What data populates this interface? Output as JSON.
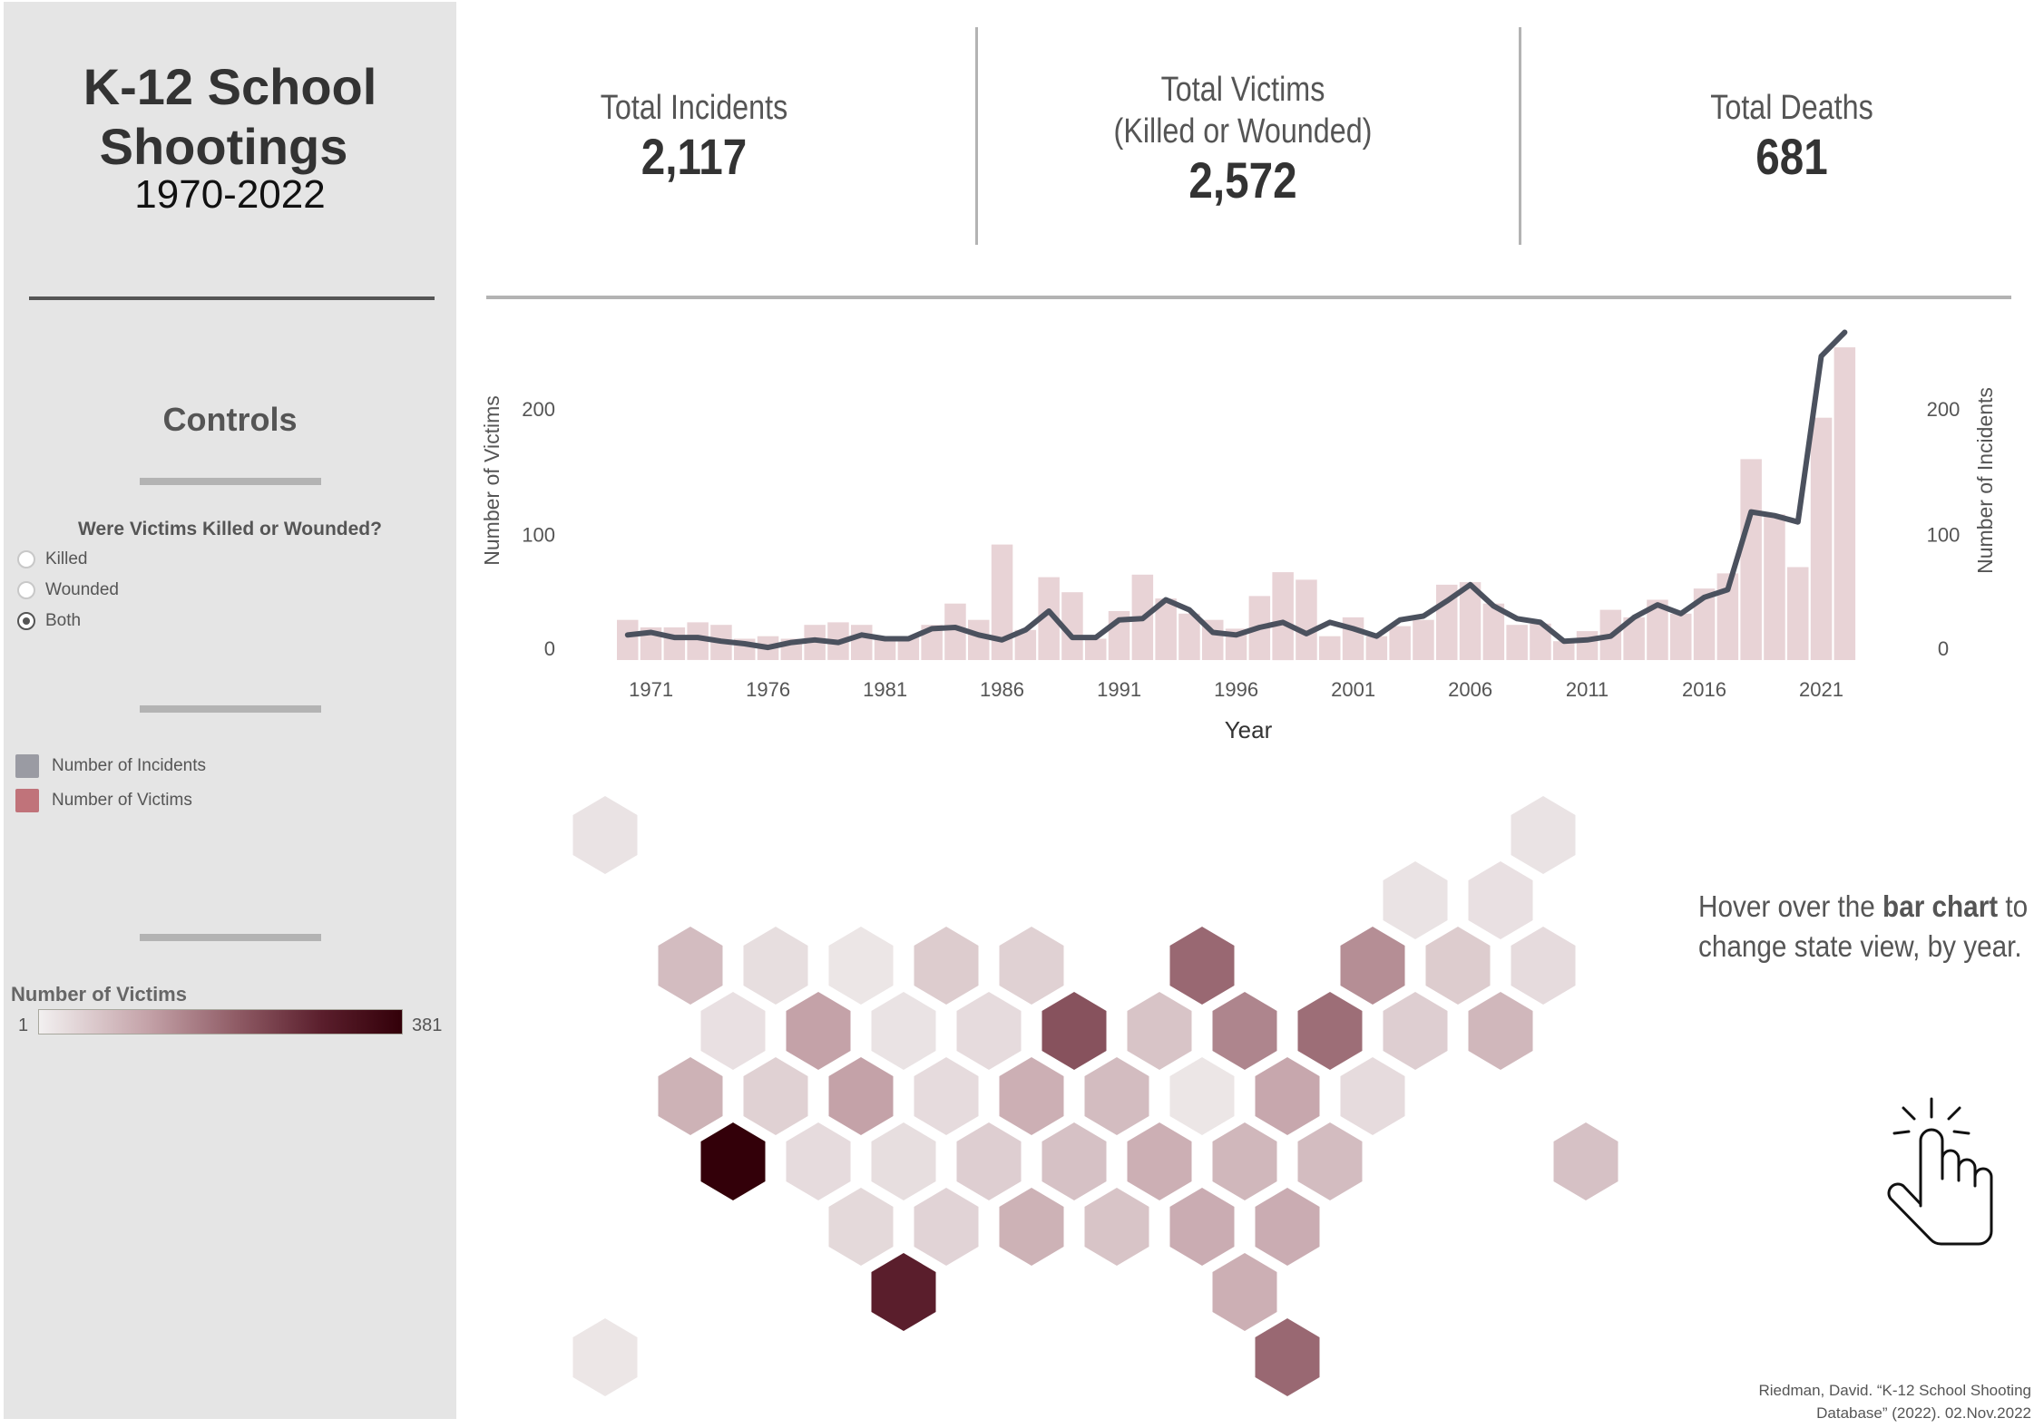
{
  "sidebar": {
    "title_line1": "K-12 School",
    "title_line2": "Shootings",
    "years": "1970-2022",
    "controls_title": "Controls",
    "filter": {
      "title": "Were Victims Killed or Wounded?",
      "options": [
        {
          "label": "Killed",
          "selected": false
        },
        {
          "label": "Wounded",
          "selected": false
        },
        {
          "label": "Both",
          "selected": true
        }
      ]
    },
    "legend": [
      {
        "label": "Number of Incidents",
        "color": "#9a9ba3"
      },
      {
        "label": "Number of Victims",
        "color": "#c0737a"
      }
    ],
    "color_legend": {
      "title": "Number of Victims",
      "min": "1",
      "max": "381",
      "color_low": "#f2f0f0",
      "color_high": "#330009"
    }
  },
  "kpis": [
    {
      "label_line1": "Total Incidents",
      "label_line2": "",
      "value": "2,117"
    },
    {
      "label_line1": "Total Victims",
      "label_line2": "(Killed or Wounded)",
      "value": "2,572"
    },
    {
      "label_line1": "Total Deaths",
      "label_line2": "",
      "value": "681"
    }
  ],
  "chart_data": {
    "type": "bar",
    "title": "",
    "xlabel": "Year",
    "ylabel": "Number of Victims",
    "ylabel_right": "Number of Incidents",
    "ylim": [
      0,
      250
    ],
    "y_ticks": [
      "0",
      "100",
      "200"
    ],
    "y_tick_values": [
      0,
      100,
      200
    ],
    "x_tick_labels": [
      "1971",
      "1976",
      "1981",
      "1986",
      "1991",
      "1996",
      "2001",
      "2006",
      "2011",
      "2016",
      "2021"
    ],
    "grid": false,
    "bar_color": "#e8d3d6",
    "line_color": "#4b515e",
    "x": [
      1970,
      1971,
      1972,
      1973,
      1974,
      1975,
      1976,
      1977,
      1978,
      1979,
      1980,
      1981,
      1982,
      1983,
      1984,
      1985,
      1986,
      1987,
      1988,
      1989,
      1990,
      1991,
      1992,
      1993,
      1994,
      1995,
      1996,
      1997,
      1998,
      1999,
      2000,
      2001,
      2002,
      2003,
      2004,
      2005,
      2006,
      2007,
      2008,
      2009,
      2010,
      2011,
      2012,
      2013,
      2014,
      2015,
      2016,
      2017,
      2018,
      2019,
      2020,
      2021,
      2022
    ],
    "series": [
      {
        "name": "Number of Victims",
        "type": "bar",
        "axis": "left",
        "values": [
          32,
          26,
          26,
          30,
          28,
          17,
          19,
          17,
          28,
          30,
          28,
          17,
          18,
          28,
          45,
          32,
          92,
          24,
          66,
          54,
          17,
          39,
          68,
          49,
          37,
          32,
          25,
          51,
          70,
          64,
          19,
          34,
          19,
          27,
          32,
          60,
          62,
          45,
          28,
          29,
          15,
          23,
          40,
          34,
          48,
          37,
          57,
          69,
          160,
          116,
          74,
          193,
          249
        ]
      },
      {
        "name": "Number of Incidents",
        "type": "line",
        "axis": "right",
        "values": [
          20,
          22,
          18,
          18,
          15,
          13,
          10,
          14,
          16,
          14,
          20,
          17,
          17,
          25,
          26,
          20,
          16,
          24,
          39,
          18,
          18,
          32,
          33,
          48,
          40,
          22,
          20,
          26,
          30,
          21,
          30,
          25,
          19,
          32,
          35,
          47,
          60,
          43,
          33,
          30,
          15,
          16,
          19,
          34,
          44,
          37,
          50,
          56,
          118,
          115,
          110,
          242,
          261
        ]
      }
    ]
  },
  "map": {
    "type": "hex-tile-map",
    "encoding": "Number of Victims",
    "tiles": [
      {
        "row": 0,
        "col": 0,
        "shade": 0.05
      },
      {
        "row": 0,
        "col": 11,
        "shade": 0.05
      },
      {
        "row": 1,
        "col": 9.5,
        "shade": 0.05
      },
      {
        "row": 1,
        "col": 10.5,
        "shade": 0.06
      },
      {
        "row": 2,
        "col": 1,
        "shade": 0.2
      },
      {
        "row": 2,
        "col": 2,
        "shade": 0.07
      },
      {
        "row": 2,
        "col": 3,
        "shade": 0.04
      },
      {
        "row": 2,
        "col": 4,
        "shade": 0.14
      },
      {
        "row": 2,
        "col": 5,
        "shade": 0.12
      },
      {
        "row": 2,
        "col": 7,
        "shade": 0.5
      },
      {
        "row": 2,
        "col": 9,
        "shade": 0.37
      },
      {
        "row": 2,
        "col": 10,
        "shade": 0.14
      },
      {
        "row": 2,
        "col": 11,
        "shade": 0.08
      },
      {
        "row": 3,
        "col": 1.5,
        "shade": 0.06
      },
      {
        "row": 3,
        "col": 2.5,
        "shade": 0.3
      },
      {
        "row": 3,
        "col": 3.5,
        "shade": 0.05
      },
      {
        "row": 3,
        "col": 4.5,
        "shade": 0.08
      },
      {
        "row": 3,
        "col": 5.5,
        "shade": 0.58
      },
      {
        "row": 3,
        "col": 6.5,
        "shade": 0.17
      },
      {
        "row": 3,
        "col": 7.5,
        "shade": 0.4
      },
      {
        "row": 3,
        "col": 8.5,
        "shade": 0.48
      },
      {
        "row": 3,
        "col": 9.5,
        "shade": 0.13
      },
      {
        "row": 3,
        "col": 10.5,
        "shade": 0.22
      },
      {
        "row": 4,
        "col": 1,
        "shade": 0.24
      },
      {
        "row": 4,
        "col": 2,
        "shade": 0.12
      },
      {
        "row": 4,
        "col": 3,
        "shade": 0.3
      },
      {
        "row": 4,
        "col": 4,
        "shade": 0.08
      },
      {
        "row": 4,
        "col": 5,
        "shade": 0.25
      },
      {
        "row": 4,
        "col": 6,
        "shade": 0.2
      },
      {
        "row": 4,
        "col": 7,
        "shade": 0.04
      },
      {
        "row": 4,
        "col": 8,
        "shade": 0.28
      },
      {
        "row": 4,
        "col": 9,
        "shade": 0.08
      },
      {
        "row": 5,
        "col": 1.5,
        "shade": 1.0
      },
      {
        "row": 5,
        "col": 2.5,
        "shade": 0.08
      },
      {
        "row": 5,
        "col": 3.5,
        "shade": 0.07
      },
      {
        "row": 5,
        "col": 4.5,
        "shade": 0.13
      },
      {
        "row": 5,
        "col": 5.5,
        "shade": 0.18
      },
      {
        "row": 5,
        "col": 6.5,
        "shade": 0.25
      },
      {
        "row": 5,
        "col": 7.5,
        "shade": 0.22
      },
      {
        "row": 5,
        "col": 8.5,
        "shade": 0.2
      },
      {
        "row": 5,
        "col": 11.5,
        "shade": 0.18
      },
      {
        "row": 6,
        "col": 3,
        "shade": 0.09
      },
      {
        "row": 6,
        "col": 4,
        "shade": 0.11
      },
      {
        "row": 6,
        "col": 5,
        "shade": 0.24
      },
      {
        "row": 6,
        "col": 6,
        "shade": 0.17
      },
      {
        "row": 6,
        "col": 7,
        "shade": 0.26
      },
      {
        "row": 6,
        "col": 8,
        "shade": 0.26
      },
      {
        "row": 7,
        "col": 3.5,
        "shade": 0.78
      },
      {
        "row": 7,
        "col": 7.5,
        "shade": 0.25
      },
      {
        "row": 8,
        "col": 0,
        "shade": 0.04
      },
      {
        "row": 8,
        "col": 8,
        "shade": 0.5
      }
    ]
  },
  "hover_note": {
    "prefix": "Hover over the ",
    "bold": "bar chart",
    "suffix_line1": " to",
    "line2": "change state view, by year."
  },
  "citation": {
    "line1": "Riedman, David. “K-12 School Shooting",
    "line2": "Database” (2022). 02.Nov.2022"
  }
}
